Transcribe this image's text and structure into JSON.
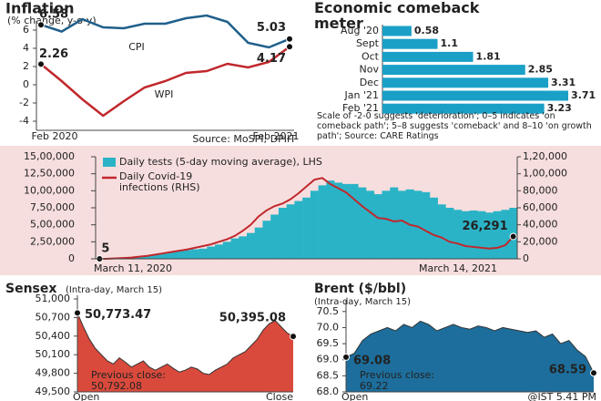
{
  "chart_data": [
    {
      "type": "line",
      "title": "Inflation",
      "subtitle": "(% change, y-o-y)",
      "categories": [
        "Feb 2020",
        null,
        null,
        null,
        null,
        null,
        null,
        null,
        null,
        null,
        null,
        null,
        "Feb 2021"
      ],
      "series": [
        {
          "name": "CPI",
          "color": "#1f5f8b",
          "values": [
            6.58,
            5.84,
            7.2,
            6.3,
            6.2,
            6.7,
            6.7,
            7.3,
            7.6,
            6.9,
            4.6,
            4.1,
            5.03
          ]
        },
        {
          "name": "WPI",
          "color": "#c0282d",
          "values": [
            2.26,
            0.4,
            -1.6,
            -3.4,
            -1.8,
            -0.3,
            0.4,
            1.3,
            1.5,
            2.3,
            1.9,
            2.5,
            4.17
          ]
        }
      ],
      "ylim": [
        -5,
        7
      ],
      "yticks": [
        -4,
        -2,
        0,
        2,
        4,
        6
      ],
      "source": "Source: MoSPI; DPIIT"
    },
    {
      "type": "hbar",
      "title": "Economic comeback meter",
      "categories": [
        "Aug '20",
        "Sept",
        "Oct",
        "Nov",
        "Dec",
        "Jan '21",
        "Feb '21"
      ],
      "values": [
        0.58,
        1.1,
        1.81,
        2.85,
        3.31,
        3.71,
        3.23
      ],
      "color": "#1aa0c6",
      "note": "Scale of -2-0 suggests 'deterioration'; 0–5 indicates 'on comeback path'; 5–8 suggests 'comeback' and 8–10 'on growth path'; Source: CARE Ratings"
    },
    {
      "type": "bar-line",
      "categories": [
        "March 11, 2020",
        null,
        null,
        null,
        null,
        null,
        null,
        null,
        null,
        null,
        null,
        null,
        null,
        null,
        null,
        null,
        null,
        null,
        null,
        null,
        null,
        null,
        null,
        null,
        null,
        null,
        null,
        null,
        null,
        null,
        null,
        null,
        null,
        null,
        null,
        null,
        null,
        null,
        null,
        null,
        null,
        null,
        null,
        null,
        null,
        null,
        null,
        null,
        null,
        null,
        null,
        null,
        "March 14, 2021"
      ],
      "series": [
        {
          "name": "Daily tests (5-day moving average), LHS",
          "color": "#2ab3c6",
          "values": [
            500,
            1500,
            5000,
            10000,
            15000,
            25000,
            40000,
            60000,
            80000,
            100000,
            120000,
            130000,
            140000,
            150000,
            180000,
            210000,
            250000,
            300000,
            330000,
            380000,
            460000,
            560000,
            650000,
            750000,
            800000,
            850000,
            900000,
            1000000,
            1080000,
            1150000,
            1120000,
            1100000,
            1100000,
            1050000,
            1000000,
            950000,
            1000000,
            1050000,
            1000000,
            1020000,
            1000000,
            980000,
            900000,
            800000,
            750000,
            720000,
            700000,
            710000,
            700000,
            680000,
            700000,
            720000,
            750000
          ]
        },
        {
          "name": "Daily Covid-19 infections (RHS)",
          "color": "#c0282d",
          "axis": "y2",
          "values": [
            5,
            100,
            500,
            1000,
            1500,
            2500,
            3500,
            5000,
            6500,
            8000,
            9500,
            11000,
            13000,
            15000,
            17000,
            20000,
            23000,
            27000,
            33000,
            40000,
            50000,
            57000,
            62000,
            65000,
            70000,
            77000,
            85000,
            93000,
            95000,
            88000,
            83000,
            78000,
            70000,
            62000,
            55000,
            48000,
            47000,
            44000,
            45000,
            40000,
            38000,
            33000,
            28000,
            25000,
            20000,
            18000,
            15000,
            14000,
            13000,
            12000,
            13000,
            16000,
            26291
          ],
          "value_labels": [
            "5",
            null,
            null,
            null,
            null,
            null,
            null,
            null,
            null,
            null,
            null,
            null,
            null,
            null,
            null,
            null,
            null,
            null,
            null,
            null,
            null,
            null,
            null,
            null,
            null,
            null,
            null,
            null,
            null,
            null,
            null,
            null,
            null,
            null,
            null,
            null,
            null,
            null,
            null,
            null,
            null,
            null,
            null,
            null,
            null,
            null,
            null,
            null,
            null,
            null,
            null,
            null,
            "26,291"
          ]
        }
      ],
      "ylim": [
        0,
        1500000
      ],
      "yticks": [
        0,
        {
          "value": 250000,
          "label": "2,50,000"
        },
        {
          "value": 500000,
          "label": "5,00,000"
        },
        {
          "value": 750000,
          "label": "7,50,000"
        },
        {
          "value": 1000000,
          "label": "10,00,000"
        },
        {
          "value": 1250000,
          "label": "12,50,000"
        },
        {
          "value": 1500000,
          "label": "15,00,000"
        }
      ],
      "y2lim": [
        0,
        120000
      ],
      "y2ticks": [
        0,
        {
          "value": 20000,
          "label": "20,000"
        },
        {
          "value": 40000,
          "label": "40,000"
        },
        {
          "value": 60000,
          "label": "60,000"
        },
        {
          "value": 80000,
          "label": "80,000"
        },
        {
          "value": 100000,
          "label": "1,00,000"
        },
        {
          "value": 120000,
          "label": "1,20,000"
        }
      ]
    },
    {
      "type": "area",
      "title": "Sensex",
      "subtitle": "(Intra-day, March 15)",
      "color": "#d94a3c",
      "categories": [
        "Open",
        null,
        null,
        null,
        null,
        null,
        null,
        null,
        null,
        null,
        null,
        null,
        null,
        null,
        null,
        null,
        null,
        null,
        null,
        null,
        null,
        null,
        null,
        null,
        null,
        null,
        null,
        null,
        null,
        null,
        null,
        null,
        null,
        null,
        null,
        null,
        "Close"
      ],
      "values": [
        50773.47,
        50550,
        50350,
        50200,
        50100,
        50000,
        49950,
        50050,
        49980,
        49900,
        49950,
        50000,
        49900,
        49850,
        49900,
        49950,
        49880,
        49820,
        49850,
        49900,
        49870,
        49800,
        49780,
        49850,
        49900,
        49950,
        50050,
        50100,
        50150,
        50250,
        50350,
        50500,
        50600,
        50650,
        50550,
        50450,
        50395.08
      ],
      "value_labels": [
        "50,773.47",
        null,
        null,
        null,
        null,
        null,
        null,
        null,
        null,
        null,
        null,
        null,
        null,
        null,
        null,
        null,
        null,
        null,
        null,
        null,
        null,
        null,
        null,
        null,
        null,
        null,
        null,
        null,
        null,
        null,
        null,
        null,
        null,
        null,
        null,
        null,
        "50,395.08"
      ],
      "ylim": [
        49500,
        51000
      ],
      "yticks": [
        {
          "value": 49500,
          "label": "49,500"
        },
        {
          "value": 49800,
          "label": "49,800"
        },
        {
          "value": 50100,
          "label": "50,100"
        },
        {
          "value": 50400,
          "label": "50,400"
        },
        {
          "value": 50700,
          "label": "50,700"
        },
        {
          "value": 51000,
          "label": "51,000"
        }
      ],
      "annotation": [
        "Previous close:",
        "50,792.08"
      ]
    },
    {
      "type": "area",
      "title": "Brent ($/bbl)",
      "subtitle": "(Intra-day, March 15)",
      "color": "#1d6e9c",
      "categories": [
        "Open",
        null,
        null,
        null,
        null,
        null,
        null,
        null,
        null,
        null,
        null,
        null,
        null,
        null,
        null,
        null,
        null,
        null,
        null,
        null,
        null,
        null,
        null,
        null,
        null,
        null,
        null,
        null,
        null,
        null,
        null
      ],
      "values": [
        69.08,
        69.2,
        69.6,
        69.8,
        69.9,
        70.0,
        69.9,
        70.1,
        70.0,
        70.2,
        70.1,
        69.9,
        70.0,
        70.1,
        70.0,
        69.95,
        70.05,
        70.0,
        69.9,
        70.0,
        69.95,
        69.9,
        69.85,
        69.9,
        69.7,
        69.8,
        69.5,
        69.6,
        69.3,
        69.1,
        68.59
      ],
      "ylim": [
        68,
        70.75
      ],
      "yticks": [
        {
          "value": 68,
          "label": "68.0"
        },
        68.5,
        {
          "value": 69,
          "label": "69.0"
        },
        69.5,
        {
          "value": 70,
          "label": "70.0"
        },
        70.5
      ],
      "annotation": [
        "Previous close:",
        "69.22"
      ],
      "note": "@IST 5.41 PM"
    }
  ]
}
